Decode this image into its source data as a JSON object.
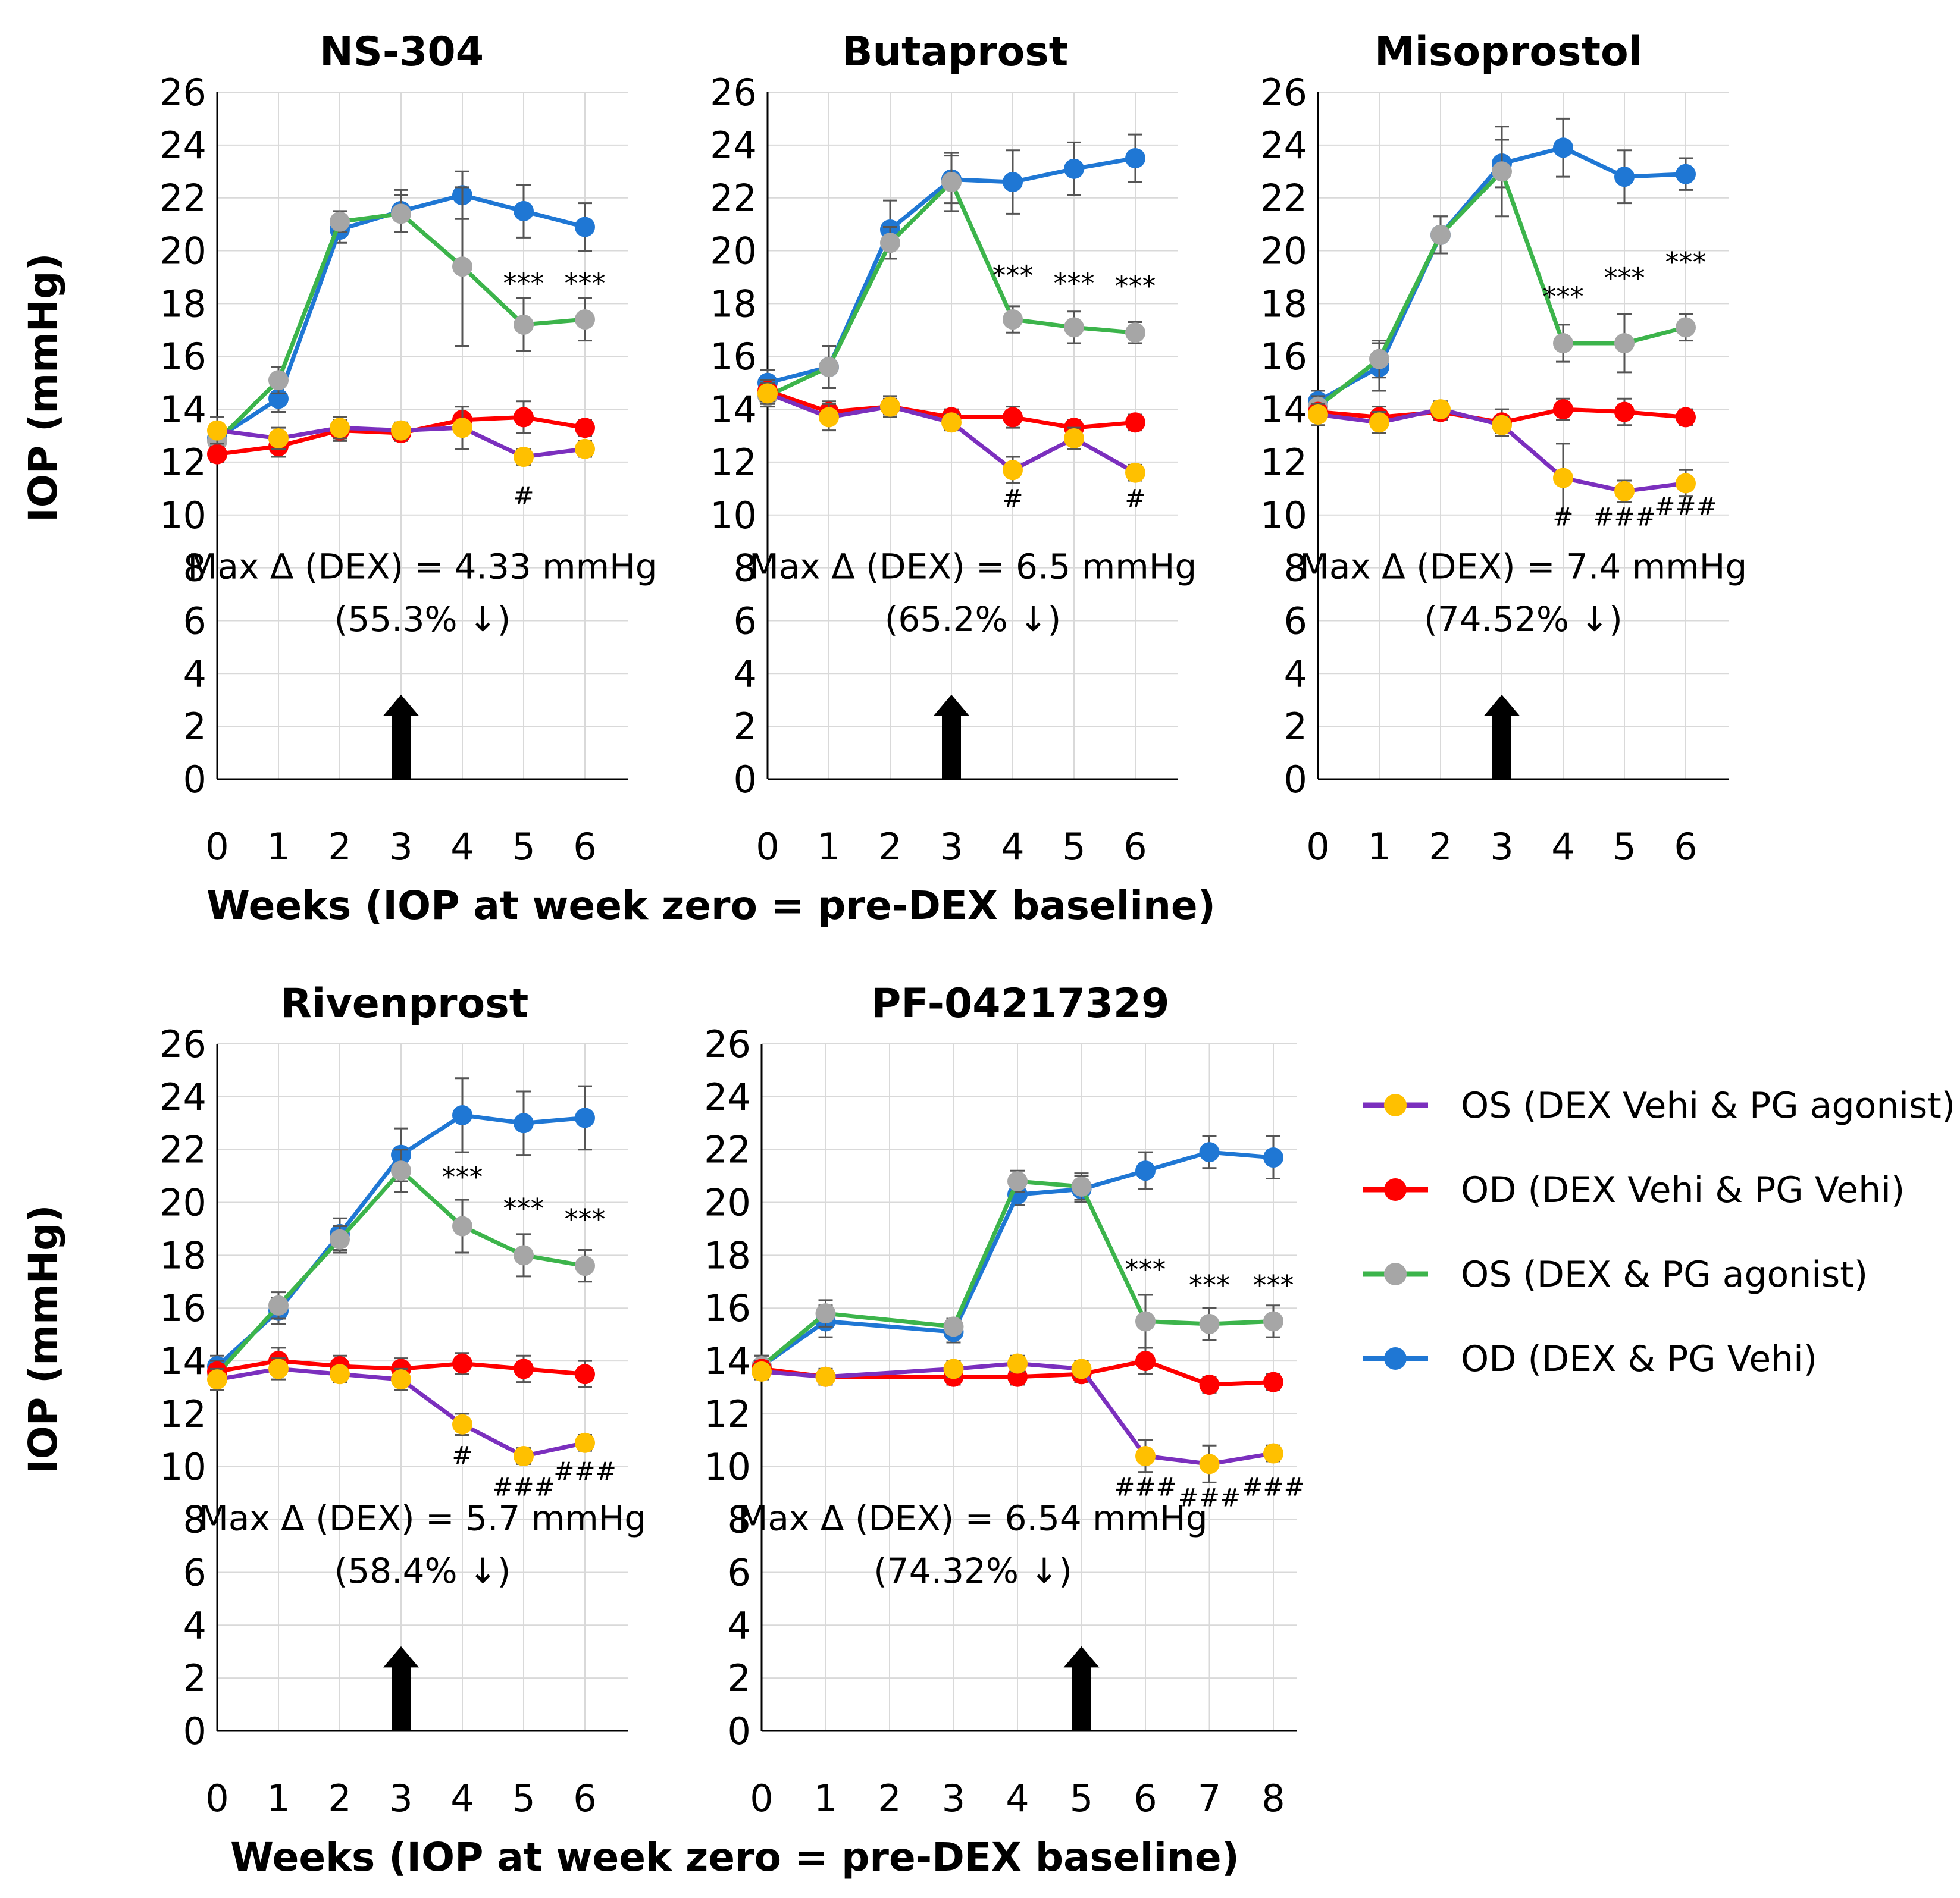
{
  "colors": {
    "os_dex_vehi_pg_agonist": {
      "line": "#7b2fbe",
      "marker": "#ffc000"
    },
    "od_dex_vehi_pg_vehi": {
      "line": "#ff0000",
      "marker": "#ff0000"
    },
    "os_dex_pg_agonist": {
      "line": "#3cb44b",
      "marker": "#a6a6a6"
    },
    "od_dex_pg_vehi": {
      "line": "#1f77d4",
      "marker": "#1f77d4"
    }
  },
  "y_axis_label": "IOP (mmHg)",
  "x_axis_label_top": "Weeks (IOP at week zero = pre-DEX baseline)",
  "x_axis_label_bottom": "Weeks (IOP at week zero = pre-DEX baseline)",
  "legend": [
    {
      "key": "os_dex_vehi_pg_agonist",
      "label": "OS (DEX Vehi & PG agonist)"
    },
    {
      "key": "od_dex_vehi_pg_vehi",
      "label": "OD (DEX Vehi & PG Vehi)"
    },
    {
      "key": "os_dex_pg_agonist",
      "label": "OS (DEX & PG agonist)"
    },
    {
      "key": "od_dex_pg_vehi",
      "label": "OD (DEX & PG Vehi)"
    }
  ],
  "chart_data": [
    {
      "type": "line",
      "title": "NS-304",
      "ylabel": "IOP (mmHg)",
      "ylim": [
        0,
        26
      ],
      "y_ticks": [
        "0",
        "2",
        "4",
        "6",
        "8",
        "10",
        "12",
        "14",
        "16",
        "18",
        "20",
        "22",
        "24",
        "26"
      ],
      "x": [
        0,
        1,
        2,
        3,
        4,
        5,
        6
      ],
      "x_tick_labels": [
        "0",
        "1",
        "2",
        "3",
        "4",
        "5",
        "6"
      ],
      "series": [
        {
          "key": "os_dex_vehi_pg_agonist",
          "name": "OS (DEX Vehi & PG agonist)",
          "values": [
            13.2,
            12.9,
            13.3,
            13.2,
            13.3,
            12.2,
            12.5
          ],
          "errors": [
            0.5,
            0.4,
            0.4,
            0.3,
            0.8,
            0.3,
            0.3
          ]
        },
        {
          "key": "od_dex_vehi_pg_vehi",
          "name": "OD (DEX Vehi & PG Vehi)",
          "values": [
            12.3,
            12.6,
            13.2,
            13.1,
            13.6,
            13.7,
            13.3
          ],
          "errors": [
            0.3,
            0.4,
            0.4,
            0.3,
            0.5,
            0.6,
            0.3
          ]
        },
        {
          "key": "os_dex_pg_agonist",
          "name": "OS (DEX & PG agonist)",
          "values": [
            12.8,
            15.1,
            21.1,
            21.4,
            19.4,
            17.2,
            17.4
          ],
          "errors": [
            0.4,
            0.5,
            0.4,
            0.7,
            3.0,
            1.0,
            0.8
          ]
        },
        {
          "key": "od_dex_pg_vehi",
          "name": "OD (DEX & PG Vehi)",
          "values": [
            12.9,
            14.4,
            20.8,
            21.5,
            22.1,
            21.5,
            20.9
          ],
          "errors": [
            0.4,
            0.5,
            0.5,
            0.8,
            0.9,
            1.0,
            0.9
          ]
        }
      ],
      "significance": [
        {
          "x": 5,
          "y": 18.4,
          "label": "***"
        },
        {
          "x": 6,
          "y": 18.4,
          "label": "***"
        }
      ],
      "hash_marks": [
        {
          "x": 5,
          "y": 10.4,
          "label": "#"
        }
      ],
      "annotation_line1": "Max Δ (DEX) = 4.33 mmHg",
      "annotation_line2": "(55.3% ↓)",
      "arrow_at_week": 3
    },
    {
      "type": "line",
      "title": "Butaprost",
      "ylabel": "",
      "ylim": [
        0,
        26
      ],
      "y_ticks": [
        "0",
        "2",
        "4",
        "6",
        "8",
        "10",
        "12",
        "14",
        "16",
        "18",
        "20",
        "22",
        "24",
        "26"
      ],
      "x": [
        0,
        1,
        2,
        3,
        4,
        5,
        6
      ],
      "x_tick_labels": [
        "0",
        "1",
        "2",
        "3",
        "4",
        "5",
        "6"
      ],
      "series": [
        {
          "key": "os_dex_vehi_pg_agonist",
          "name": "OS (DEX Vehi & PG agonist)",
          "values": [
            14.6,
            13.7,
            14.1,
            13.5,
            11.7,
            12.9,
            11.6
          ],
          "errors": [
            0.4,
            0.5,
            0.4,
            0.3,
            0.5,
            0.4,
            0.3
          ]
        },
        {
          "key": "od_dex_vehi_pg_vehi",
          "name": "OD (DEX Vehi & PG Vehi)",
          "values": [
            14.7,
            13.9,
            14.1,
            13.7,
            13.7,
            13.3,
            13.5
          ],
          "errors": [
            0.4,
            0.4,
            0.3,
            0.3,
            0.4,
            0.3,
            0.3
          ]
        },
        {
          "key": "os_dex_pg_agonist",
          "name": "OS (DEX & PG agonist)",
          "values": [
            14.5,
            15.6,
            20.3,
            22.6,
            17.4,
            17.1,
            16.9
          ],
          "errors": [
            0.4,
            0.8,
            0.6,
            1.1,
            0.5,
            0.6,
            0.4
          ]
        },
        {
          "key": "od_dex_pg_vehi",
          "name": "OD (DEX & PG Vehi)",
          "values": [
            15.0,
            15.6,
            20.8,
            22.7,
            22.6,
            23.1,
            23.5
          ],
          "errors": [
            0.5,
            0.8,
            1.1,
            0.9,
            1.2,
            1.0,
            0.9
          ]
        }
      ],
      "significance": [
        {
          "x": 4,
          "y": 18.7,
          "label": "***"
        },
        {
          "x": 5,
          "y": 18.4,
          "label": "***"
        },
        {
          "x": 6,
          "y": 18.3,
          "label": "***"
        }
      ],
      "hash_marks": [
        {
          "x": 4,
          "y": 10.3,
          "label": "#"
        },
        {
          "x": 6,
          "y": 10.3,
          "label": "#"
        }
      ],
      "annotation_line1": "Max Δ (DEX) = 6.5 mmHg",
      "annotation_line2": "(65.2% ↓)",
      "arrow_at_week": 3
    },
    {
      "type": "line",
      "title": "Misoprostol",
      "ylabel": "",
      "ylim": [
        0,
        26
      ],
      "y_ticks": [
        "0",
        "2",
        "4",
        "6",
        "8",
        "10",
        "12",
        "14",
        "16",
        "18",
        "20",
        "22",
        "24",
        "26"
      ],
      "x": [
        0,
        1,
        2,
        3,
        4,
        5,
        6
      ],
      "x_tick_labels": [
        "0",
        "1",
        "2",
        "3",
        "4",
        "5",
        "6"
      ],
      "series": [
        {
          "key": "os_dex_vehi_pg_agonist",
          "name": "OS (DEX Vehi & PG agonist)",
          "values": [
            13.8,
            13.5,
            14.0,
            13.4,
            11.4,
            10.9,
            11.2
          ],
          "errors": [
            0.4,
            0.4,
            0.3,
            0.3,
            1.3,
            0.4,
            0.5
          ]
        },
        {
          "key": "od_dex_vehi_pg_vehi",
          "name": "OD (DEX Vehi & PG Vehi)",
          "values": [
            13.9,
            13.7,
            13.9,
            13.5,
            14.0,
            13.9,
            13.7
          ],
          "errors": [
            0.3,
            0.4,
            0.3,
            0.5,
            0.4,
            0.5,
            0.3
          ]
        },
        {
          "key": "os_dex_pg_agonist",
          "name": "OS (DEX & PG agonist)",
          "values": [
            14.1,
            15.9,
            20.6,
            23.0,
            16.5,
            16.5,
            17.1
          ],
          "errors": [
            0.4,
            0.7,
            0.7,
            1.7,
            0.7,
            1.1,
            0.5
          ]
        },
        {
          "key": "od_dex_pg_vehi",
          "name": "OD (DEX & PG Vehi)",
          "values": [
            14.3,
            15.6,
            20.6,
            23.3,
            23.9,
            22.8,
            22.9
          ],
          "errors": [
            0.4,
            0.9,
            0.7,
            0.9,
            1.1,
            1.0,
            0.6
          ]
        }
      ],
      "significance": [
        {
          "x": 4,
          "y": 17.9,
          "label": "***"
        },
        {
          "x": 5,
          "y": 18.6,
          "label": "***"
        },
        {
          "x": 6,
          "y": 19.2,
          "label": "***"
        }
      ],
      "hash_marks": [
        {
          "x": 4,
          "y": 9.6,
          "label": "#"
        },
        {
          "x": 5,
          "y": 9.6,
          "label": "###"
        },
        {
          "x": 6,
          "y": 10.0,
          "label": "###"
        }
      ],
      "annotation_line1": "Max Δ (DEX) = 7.4 mmHg",
      "annotation_line2": "(74.52% ↓)",
      "arrow_at_week": 3
    },
    {
      "type": "line",
      "title": "Rivenprost",
      "ylabel": "IOP (mmHg)",
      "ylim": [
        0,
        26
      ],
      "y_ticks": [
        "0",
        "2",
        "4",
        "6",
        "8",
        "10",
        "12",
        "14",
        "16",
        "18",
        "20",
        "22",
        "24",
        "26"
      ],
      "x": [
        0,
        1,
        2,
        3,
        4,
        5,
        6
      ],
      "x_tick_labels": [
        "0",
        "1",
        "2",
        "3",
        "4",
        "5",
        "6"
      ],
      "series": [
        {
          "key": "os_dex_vehi_pg_agonist",
          "name": "OS (DEX Vehi & PG agonist)",
          "values": [
            13.3,
            13.7,
            13.5,
            13.3,
            11.6,
            10.4,
            10.9
          ],
          "errors": [
            0.4,
            0.4,
            0.3,
            0.4,
            0.4,
            0.3,
            0.3
          ]
        },
        {
          "key": "od_dex_vehi_pg_vehi",
          "name": "OD (DEX Vehi & PG Vehi)",
          "values": [
            13.6,
            14.0,
            13.8,
            13.7,
            13.9,
            13.7,
            13.5
          ],
          "errors": [
            0.4,
            0.5,
            0.4,
            0.4,
            0.4,
            0.5,
            0.5
          ]
        },
        {
          "key": "os_dex_pg_agonist",
          "name": "OS (DEX & PG agonist)",
          "values": [
            13.5,
            16.1,
            18.6,
            21.2,
            19.1,
            18.0,
            17.6
          ],
          "errors": [
            0.4,
            0.5,
            0.5,
            0.8,
            1.0,
            0.8,
            0.6
          ]
        },
        {
          "key": "od_dex_pg_vehi",
          "name": "OD (DEX & PG Vehi)",
          "values": [
            13.8,
            15.9,
            18.8,
            21.8,
            23.3,
            23.0,
            23.2
          ],
          "errors": [
            0.4,
            0.5,
            0.6,
            1.0,
            1.4,
            1.2,
            1.2
          ]
        }
      ],
      "significance": [
        {
          "x": 4,
          "y": 20.6,
          "label": "***"
        },
        {
          "x": 5,
          "y": 19.4,
          "label": "***"
        },
        {
          "x": 6,
          "y": 19.0,
          "label": "***"
        }
      ],
      "hash_marks": [
        {
          "x": 4,
          "y": 10.1,
          "label": "#"
        },
        {
          "x": 5,
          "y": 8.9,
          "label": "###"
        },
        {
          "x": 6,
          "y": 9.5,
          "label": "###"
        }
      ],
      "annotation_line1": "Max Δ (DEX) = 5.7 mmHg",
      "annotation_line2": "(58.4% ↓)",
      "arrow_at_week": 3
    },
    {
      "type": "line",
      "title": "PF-04217329",
      "ylabel": "",
      "ylim": [
        0,
        26
      ],
      "y_ticks": [
        "0",
        "2",
        "4",
        "6",
        "8",
        "10",
        "12",
        "14",
        "16",
        "18",
        "20",
        "22",
        "24",
        "26"
      ],
      "x": [
        0,
        1,
        3,
        4,
        5,
        6,
        7,
        8
      ],
      "x_tick_labels": [
        "0",
        "1",
        "2",
        "3",
        "4",
        "5",
        "6",
        "7",
        "8"
      ],
      "series": [
        {
          "key": "os_dex_vehi_pg_agonist",
          "name": "OS (DEX Vehi & PG agonist)",
          "values": [
            13.6,
            13.4,
            13.7,
            13.9,
            13.7,
            10.4,
            10.1,
            10.5
          ],
          "errors": [
            0.3,
            0.3,
            0.3,
            0.3,
            0.3,
            0.6,
            0.7,
            0.3
          ]
        },
        {
          "key": "od_dex_vehi_pg_vehi",
          "name": "OD (DEX Vehi & PG Vehi)",
          "values": [
            13.7,
            13.4,
            13.4,
            13.4,
            13.5,
            14.0,
            13.1,
            13.2
          ],
          "errors": [
            0.3,
            0.3,
            0.3,
            0.3,
            0.3,
            0.5,
            0.3,
            0.3
          ]
        },
        {
          "key": "os_dex_pg_agonist",
          "name": "OS (DEX & PG agonist)",
          "values": [
            13.8,
            15.8,
            15.3,
            20.8,
            20.6,
            15.5,
            15.4,
            15.5
          ],
          "errors": [
            0.4,
            0.5,
            0.3,
            0.4,
            0.5,
            1.0,
            0.6,
            0.6
          ]
        },
        {
          "key": "od_dex_pg_vehi",
          "name": "OD (DEX & PG Vehi)",
          "values": [
            13.8,
            15.5,
            15.1,
            20.3,
            20.5,
            21.2,
            21.9,
            21.7
          ],
          "errors": [
            0.4,
            0.6,
            0.4,
            0.4,
            0.5,
            0.7,
            0.6,
            0.8
          ]
        }
      ],
      "significance": [
        {
          "x": 6,
          "y": 17.1,
          "label": "***"
        },
        {
          "x": 7,
          "y": 16.5,
          "label": "***"
        },
        {
          "x": 8,
          "y": 16.5,
          "label": "***"
        }
      ],
      "hash_marks": [
        {
          "x": 6,
          "y": 8.9,
          "label": "###"
        },
        {
          "x": 7,
          "y": 8.5,
          "label": "###"
        },
        {
          "x": 8,
          "y": 8.9,
          "label": "###"
        }
      ],
      "annotation_line1": "Max Δ (DEX) = 6.54 mmHg",
      "annotation_line2": "(74.32% ↓)",
      "arrow_at_week": 5
    }
  ]
}
